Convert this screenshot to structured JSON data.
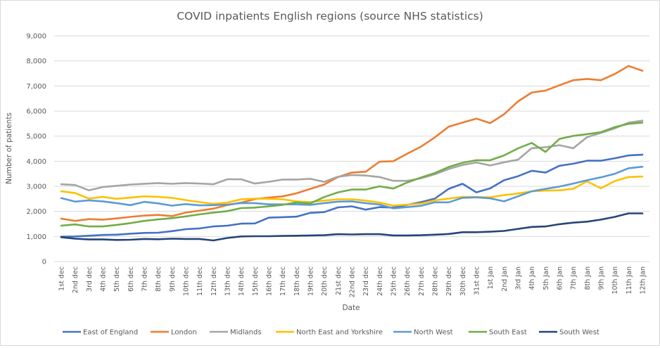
{
  "chart_data": {
    "type": "line",
    "title": "COVID inpatients English regions (source NHS statistics)",
    "xlabel": "Date",
    "ylabel": "Number of patients",
    "ylim": [
      0,
      9000
    ],
    "yticks": [
      0,
      1000,
      2000,
      3000,
      4000,
      5000,
      6000,
      7000,
      8000,
      9000
    ],
    "ytick_labels": [
      "0",
      "1,000",
      "2,000",
      "3,000",
      "4,000",
      "5,000",
      "6,000",
      "7,000",
      "8,000",
      "9,000"
    ],
    "grid": true,
    "legend_position": "bottom",
    "categories": [
      "1st dec",
      "2nd dec",
      "3rd dec",
      "4th dec",
      "5th dec",
      "6th dec",
      "7th dec",
      "8th dec",
      "9th dec",
      "10th dec",
      "11th dec",
      "12th dec",
      "13th dec",
      "14th dec",
      "15th dec",
      "16th dec",
      "17th dec",
      "18th dec",
      "19th dec",
      "20th dec",
      "21st dec",
      "22nd dec",
      "23rd dec",
      "24th dec",
      "25th dec",
      "26th dec",
      "27th dec",
      "28th dec",
      "29th dec",
      "30th dec",
      "31st dec",
      "1st Jan",
      "2nd Jan",
      "3rd Jan",
      "4th Jan",
      "5th Jan",
      "6th Jan",
      "7th Jan",
      "8th Jan",
      "9th Jan",
      "10th Jan",
      "11th Jan",
      "12th Jan"
    ],
    "series": [
      {
        "name": "East of England",
        "color": "#4472C4",
        "values": [
          990,
          1000,
          1030,
          1060,
          1070,
          1110,
          1140,
          1150,
          1210,
          1290,
          1320,
          1400,
          1430,
          1510,
          1520,
          1750,
          1770,
          1790,
          1940,
          1970,
          2160,
          2200,
          2070,
          2170,
          2150,
          2260,
          2370,
          2510,
          2900,
          3100,
          2760,
          2920,
          3240,
          3400,
          3620,
          3550,
          3820,
          3900,
          4020,
          4020,
          4120,
          4230,
          4260
        ]
      },
      {
        "name": "London",
        "color": "#ED7D31",
        "values": [
          1710,
          1620,
          1690,
          1670,
          1720,
          1780,
          1830,
          1860,
          1810,
          1950,
          2030,
          2110,
          2250,
          2350,
          2490,
          2550,
          2600,
          2720,
          2900,
          3070,
          3370,
          3550,
          3580,
          3980,
          4000,
          4300,
          4580,
          4950,
          5380,
          5540,
          5700,
          5520,
          5870,
          6380,
          6740,
          6820,
          7030,
          7230,
          7280,
          7230,
          7480,
          7800,
          7610
        ]
      },
      {
        "name": "Midlands",
        "color": "#A5A5A5",
        "values": [
          3080,
          3050,
          2840,
          2970,
          3020,
          3070,
          3100,
          3130,
          3100,
          3130,
          3110,
          3080,
          3280,
          3280,
          3110,
          3180,
          3270,
          3270,
          3300,
          3180,
          3380,
          3450,
          3430,
          3370,
          3220,
          3220,
          3320,
          3480,
          3690,
          3850,
          3950,
          3830,
          3960,
          4060,
          4520,
          4560,
          4640,
          4520,
          4960,
          5130,
          5310,
          5540,
          5620
        ]
      },
      {
        "name": "North East and Yorkshire",
        "color": "#FFC000",
        "values": [
          2800,
          2730,
          2510,
          2580,
          2500,
          2550,
          2600,
          2580,
          2540,
          2450,
          2370,
          2300,
          2350,
          2480,
          2510,
          2500,
          2480,
          2400,
          2370,
          2430,
          2480,
          2480,
          2430,
          2350,
          2230,
          2270,
          2310,
          2440,
          2510,
          2580,
          2570,
          2560,
          2650,
          2710,
          2800,
          2830,
          2840,
          2900,
          3200,
          2920,
          3210,
          3370,
          3390
        ]
      },
      {
        "name": "North West",
        "color": "#5B9BD5",
        "values": [
          2530,
          2390,
          2440,
          2400,
          2330,
          2250,
          2380,
          2320,
          2230,
          2290,
          2240,
          2250,
          2270,
          2330,
          2330,
          2280,
          2280,
          2280,
          2260,
          2330,
          2390,
          2400,
          2330,
          2270,
          2120,
          2170,
          2220,
          2360,
          2360,
          2540,
          2560,
          2520,
          2400,
          2600,
          2800,
          2900,
          2990,
          3110,
          3240,
          3360,
          3500,
          3720,
          3780
        ]
      },
      {
        "name": "South East",
        "color": "#70AD47",
        "values": [
          1430,
          1480,
          1400,
          1400,
          1460,
          1530,
          1620,
          1680,
          1730,
          1800,
          1880,
          1950,
          2010,
          2130,
          2150,
          2200,
          2260,
          2360,
          2320,
          2570,
          2760,
          2870,
          2870,
          3000,
          2910,
          3150,
          3350,
          3530,
          3770,
          3940,
          4040,
          4040,
          4230,
          4510,
          4730,
          4370,
          4890,
          5010,
          5080,
          5160,
          5360,
          5490,
          5540
        ]
      },
      {
        "name": "South West",
        "color": "#264478",
        "values": [
          970,
          910,
          880,
          880,
          860,
          870,
          900,
          890,
          910,
          900,
          900,
          840,
          940,
          1000,
          1010,
          1010,
          1020,
          1030,
          1040,
          1050,
          1090,
          1080,
          1090,
          1090,
          1040,
          1040,
          1050,
          1070,
          1100,
          1170,
          1170,
          1190,
          1220,
          1300,
          1380,
          1400,
          1490,
          1550,
          1590,
          1670,
          1780,
          1920,
          1920
        ]
      }
    ]
  }
}
